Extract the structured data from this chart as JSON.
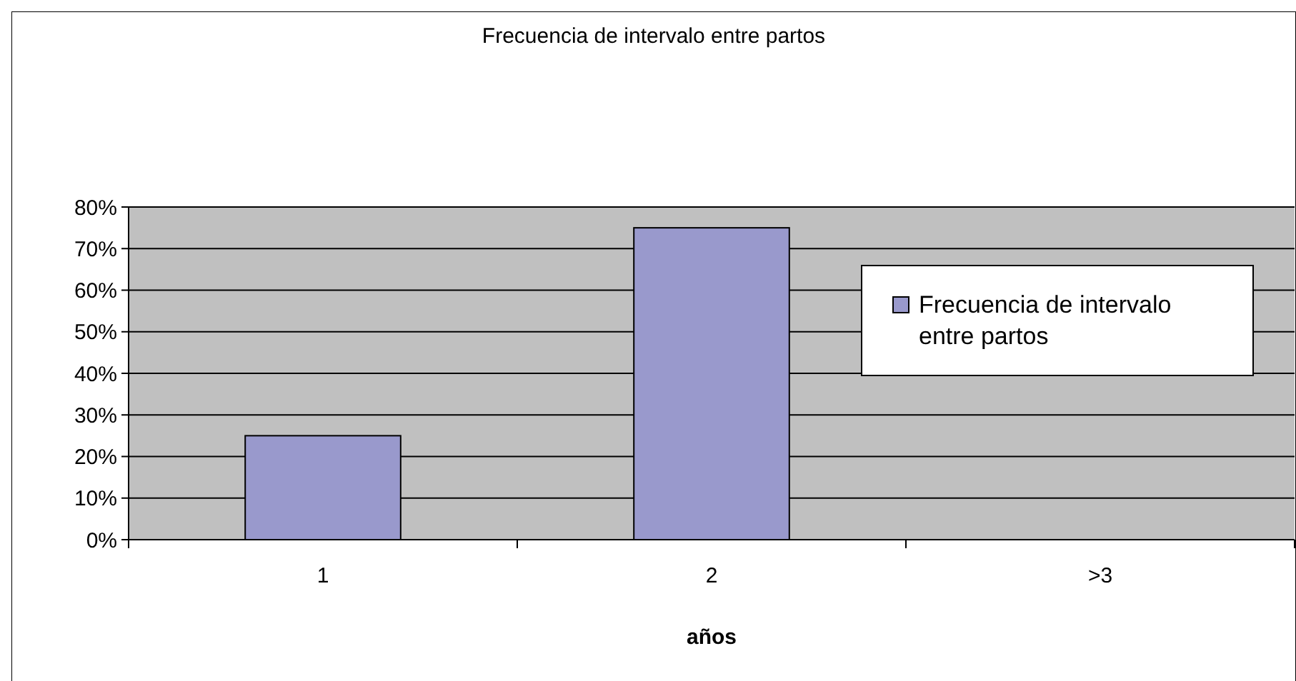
{
  "chart_data": {
    "type": "bar",
    "title": "Frecuencia de intervalo entre partos",
    "xlabel": "años",
    "categories": [
      "1",
      "2",
      ">3"
    ],
    "series": [
      {
        "name": "Frecuencia de intervalo entre partos",
        "color": "#9999cc",
        "values": [
          25,
          75,
          0
        ]
      }
    ],
    "ylim": [
      0,
      80
    ],
    "yticks": [
      {
        "value": 0,
        "label": "0%"
      },
      {
        "value": 10,
        "label": "10%"
      },
      {
        "value": 20,
        "label": "20%"
      },
      {
        "value": 30,
        "label": "30%"
      },
      {
        "value": 40,
        "label": "40%"
      },
      {
        "value": 50,
        "label": "50%"
      },
      {
        "value": 60,
        "label": "60%"
      },
      {
        "value": 70,
        "label": "70%"
      },
      {
        "value": 80,
        "label": "80%"
      }
    ],
    "grid": "y",
    "legend": "right"
  }
}
